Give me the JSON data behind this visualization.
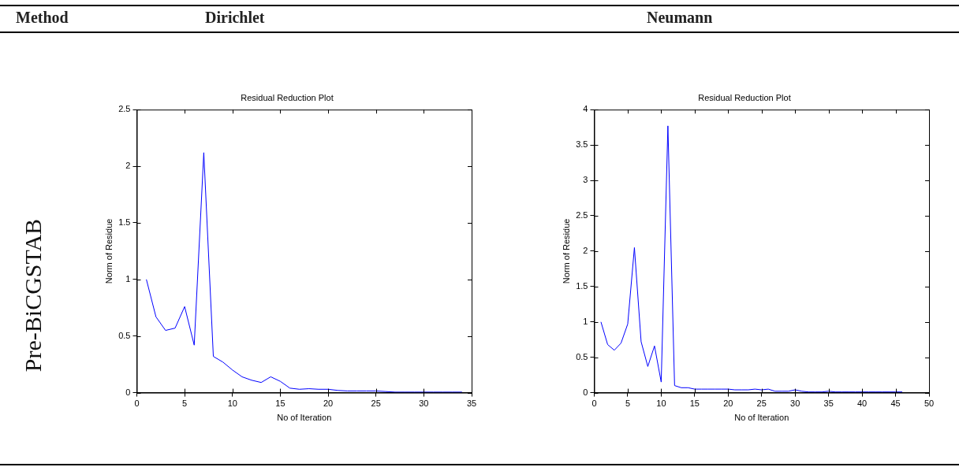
{
  "chart_data": [
    {
      "type": "line",
      "title": "Residual Reduction Plot",
      "xlabel": "No of Iteration",
      "ylabel": "Norm of Residue",
      "annotations": [
        "Method",
        "Dirichlet",
        "Pre-BiCGSTAB"
      ],
      "x": [
        1,
        2,
        3,
        4,
        5,
        6,
        7,
        8,
        9,
        10,
        11,
        12,
        13,
        14,
        15,
        16,
        17,
        18,
        19,
        20,
        21,
        22,
        23,
        24,
        25,
        26,
        27,
        28,
        29,
        30,
        31,
        32,
        33,
        34
      ],
      "series": [
        {
          "color": "#0000ff",
          "values": [
            1.0,
            0.67,
            0.55,
            0.57,
            0.76,
            0.42,
            2.12,
            0.32,
            0.27,
            0.2,
            0.14,
            0.11,
            0.09,
            0.14,
            0.1,
            0.04,
            0.03,
            0.035,
            0.03,
            0.03,
            0.02,
            0.015,
            0.015,
            0.015,
            0.015,
            0.01,
            0.005,
            0.005,
            0.005,
            0.005,
            0.005,
            0.005,
            0.005,
            0.005
          ]
        }
      ],
      "xlim": [
        0,
        35
      ],
      "xticks": [
        0,
        5,
        10,
        15,
        20,
        25,
        30,
        35
      ],
      "ylim": [
        0,
        2.5
      ],
      "yticks": [
        0,
        0.5,
        1,
        1.5,
        2,
        2.5
      ],
      "grid": false,
      "legend": false,
      "marker": "none",
      "line_style": "solid"
    },
    {
      "type": "line",
      "title": "Residual Reduction Plot",
      "xlabel": "No of Iteration",
      "ylabel": "Norm of Residue",
      "annotations": [
        "Neumann"
      ],
      "x": [
        1,
        2,
        3,
        4,
        5,
        6,
        7,
        8,
        9,
        10,
        11,
        12,
        13,
        14,
        15,
        16,
        17,
        18,
        19,
        20,
        21,
        22,
        23,
        24,
        25,
        26,
        27,
        28,
        29,
        30,
        31,
        32,
        33,
        34,
        35,
        36,
        37,
        38,
        39,
        40,
        41,
        42,
        43,
        44,
        45,
        46
      ],
      "series": [
        {
          "color": "#0000ff",
          "values": [
            1.0,
            0.68,
            0.6,
            0.7,
            0.97,
            2.05,
            0.72,
            0.37,
            0.66,
            0.15,
            3.77,
            0.1,
            0.07,
            0.07,
            0.05,
            0.05,
            0.05,
            0.05,
            0.05,
            0.05,
            0.04,
            0.04,
            0.04,
            0.05,
            0.04,
            0.05,
            0.02,
            0.02,
            0.02,
            0.04,
            0.02,
            0.01,
            0.01,
            0.01,
            0.02,
            0.01,
            0.01,
            0.01,
            0.01,
            0.01,
            0.01,
            0.01,
            0.01,
            0.01,
            0.01,
            0.01
          ]
        }
      ],
      "xlim": [
        0,
        50
      ],
      "xticks": [
        0,
        5,
        10,
        15,
        20,
        25,
        30,
        35,
        40,
        45,
        50
      ],
      "ylim": [
        0,
        4
      ],
      "yticks": [
        0,
        0.5,
        1,
        1.5,
        2,
        2.5,
        3,
        3.5,
        4
      ],
      "grid": false,
      "legend": false,
      "marker": "none",
      "line_style": "solid"
    }
  ]
}
